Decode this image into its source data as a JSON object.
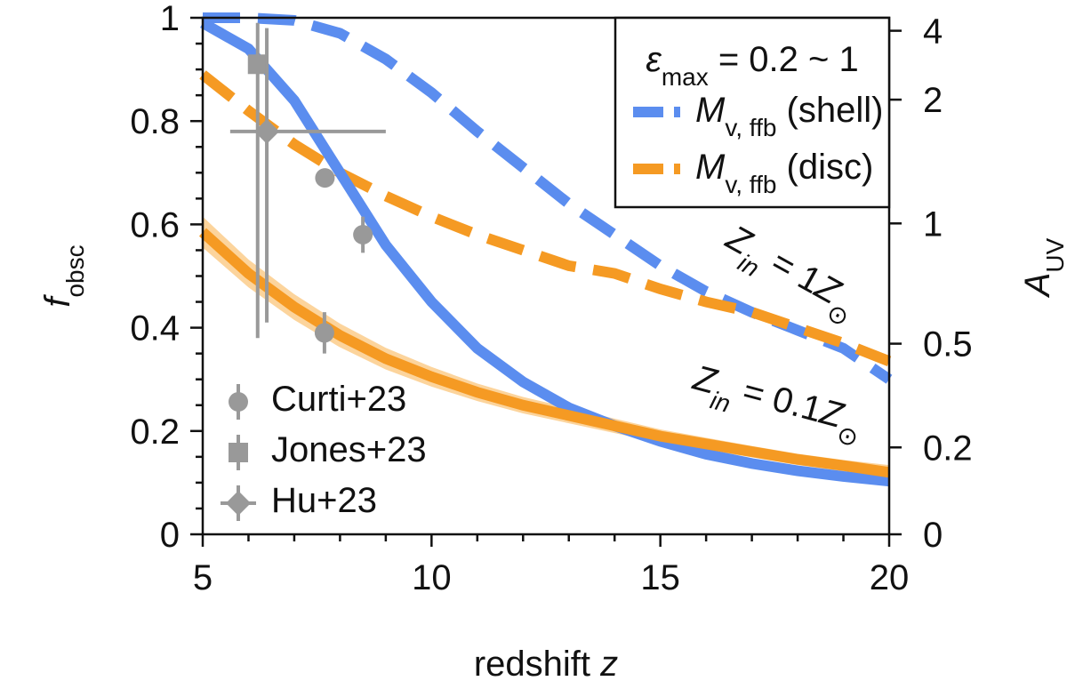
{
  "chart_data": {
    "type": "line",
    "xlabel": [
      {
        "text": "redshift "
      },
      {
        "text": "z",
        "italic": true
      }
    ],
    "ylabel": [
      {
        "text": "f",
        "italic": true
      },
      {
        "text": "obsc",
        "sub": true
      }
    ],
    "y2label": [
      {
        "text": "A",
        "italic": true
      },
      {
        "text": "UV",
        "sub": true
      }
    ],
    "xlim": [
      5,
      20
    ],
    "xticks": [
      5,
      10,
      15,
      20
    ],
    "ylim": [
      0,
      1
    ],
    "yticks": [
      0,
      0.2,
      0.4,
      0.6,
      0.8,
      1
    ],
    "y2scale": "obscuration",
    "y2ticks": [
      0,
      0.2,
      0.5,
      1,
      2,
      4
    ],
    "minor_divisions": {
      "x": 5,
      "y": 4
    },
    "legend_title": [
      {
        "text": "ε",
        "italic": true
      },
      {
        "text": "max",
        "sub": true
      },
      {
        "text": " = 0.2 ~ 1"
      }
    ],
    "legend": "upper right",
    "x": [
      5,
      6,
      7,
      8,
      9,
      10,
      11,
      12,
      13,
      14,
      15,
      16,
      17,
      18,
      19,
      20
    ],
    "series": [
      {
        "name": [
          {
            "text": "M",
            "italic": true
          },
          {
            "text": "v, ffb",
            "sub": true
          },
          {
            "text": " (shell)"
          }
        ],
        "color": "#5b8def",
        "dash": true,
        "values": [
          1.0,
          1.0,
          0.995,
          0.97,
          0.92,
          0.855,
          0.78,
          0.71,
          0.64,
          0.58,
          0.52,
          0.47,
          0.43,
          0.395,
          0.36,
          0.3
        ]
      },
      {
        "name": [
          {
            "text": "M",
            "italic": true
          },
          {
            "text": "v, ffb",
            "sub": true
          },
          {
            "text": " (disc)"
          }
        ],
        "color": "#f59a23",
        "dash": true,
        "values": [
          0.89,
          0.82,
          0.755,
          0.7,
          0.655,
          0.615,
          0.58,
          0.55,
          0.52,
          0.505,
          0.475,
          0.45,
          0.43,
          0.4,
          0.37,
          0.335
        ]
      },
      {
        "color": "#5b8def",
        "dash": false,
        "values": [
          0.99,
          0.94,
          0.84,
          0.7,
          0.56,
          0.45,
          0.36,
          0.295,
          0.245,
          0.21,
          0.18,
          0.155,
          0.137,
          0.123,
          0.112,
          0.103
        ]
      },
      {
        "color": "#f59a23",
        "dash": false,
        "band_color": "#fcd49c",
        "values": [
          0.585,
          0.505,
          0.44,
          0.385,
          0.34,
          0.305,
          0.275,
          0.25,
          0.23,
          0.21,
          0.19,
          0.175,
          0.16,
          0.145,
          0.133,
          0.12
        ],
        "lower": [
          0.555,
          0.478,
          0.415,
          0.362,
          0.319,
          0.286,
          0.258,
          0.234,
          0.215,
          0.196,
          0.177,
          0.163,
          0.149,
          0.134,
          0.122,
          0.106
        ],
        "upper": [
          0.615,
          0.532,
          0.465,
          0.408,
          0.361,
          0.324,
          0.292,
          0.266,
          0.245,
          0.224,
          0.203,
          0.187,
          0.171,
          0.156,
          0.144,
          0.134
        ]
      }
    ],
    "points": [
      {
        "name": "Curti+23",
        "marker": "circle",
        "color": "#999999",
        "x": [
          7.67,
          8.5,
          7.66
        ],
        "y": [
          0.69,
          0.58,
          0.39
        ],
        "yerr": [
          [
            0.015,
            0.015
          ],
          [
            0.035,
            0.035
          ],
          [
            0.04,
            0.04
          ]
        ]
      },
      {
        "name": "Jones+23",
        "marker": "square",
        "color": "#999999",
        "x": [
          6.2
        ],
        "y": [
          0.91
        ],
        "yerr": [
          [
            0.53,
            0.08
          ]
        ]
      },
      {
        "name": "Hu+23",
        "marker": "diamond",
        "color": "#999999",
        "x": [
          6.4
        ],
        "y": [
          0.78
        ],
        "yerr": [
          [
            0.37,
            0.2
          ]
        ],
        "xerr": [
          [
            0.8,
            2.6
          ]
        ]
      }
    ],
    "annotations": [
      [
        {
          "text": "Z",
          "italic": true
        },
        {
          "text": "in",
          "italic": true,
          "sub": true
        },
        {
          "text": " = 1"
        },
        {
          "text": "Z",
          "italic": true
        },
        {
          "text": "⊙",
          "sub": true
        }
      ],
      [
        {
          "text": "Z",
          "italic": true
        },
        {
          "text": "in",
          "italic": true,
          "sub": true
        },
        {
          "text": " = 0.1"
        },
        {
          "text": "Z",
          "italic": true
        },
        {
          "text": "⊙",
          "sub": true
        }
      ]
    ]
  }
}
